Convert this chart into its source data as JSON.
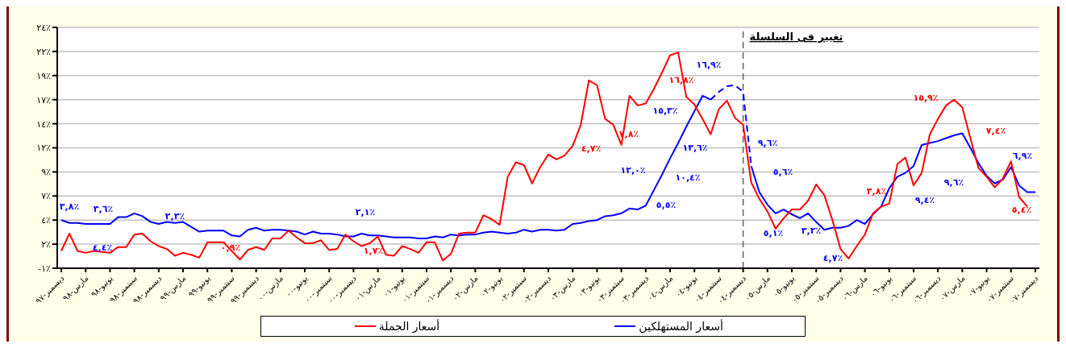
{
  "chart_data": {
    "type": "line",
    "categories": [
      "ديسمبر-٩٧",
      null,
      null,
      "مارس-٩٨",
      null,
      null,
      "يونيو-٩٨",
      null,
      null,
      "سبتمبر-٩٨",
      null,
      null,
      "ديسمبر-٩٨",
      null,
      null,
      "مارس-٩٩",
      null,
      null,
      "يونيو-٩٩",
      null,
      null,
      "سبتمبر-٩٩",
      null,
      null,
      "ديسمبر-٩٩",
      null,
      null,
      "مارس-٠٠",
      null,
      null,
      "يونيو-٠٠",
      null,
      null,
      "سبتمبر-٠٠",
      null,
      null,
      "ديسمبر-٠٠",
      null,
      null,
      "مارس-٠١",
      null,
      null,
      "يونيو-٠١",
      null,
      null,
      "سبتمبر-٠١",
      null,
      null,
      "ديسمبر-٠١",
      null,
      null,
      "مارس-٠٢",
      null,
      null,
      "يونيو-٠٢",
      null,
      null,
      "سبتمبر-٠٢",
      null,
      null,
      "ديسمبر-٠٢",
      null,
      null,
      "مارس-٠٣",
      null,
      null,
      "يونيو-٠٣",
      null,
      null,
      "سبتمبر-٠٣",
      null,
      null,
      "ديسمبر-٠٣",
      null,
      null,
      "مارس-٠٤",
      null,
      null,
      "يونيو-٠٤",
      null,
      null,
      "سبتمبر-٠٤",
      null,
      null,
      "ديسمبر-٠٤",
      null,
      null,
      "مارس-٠٥",
      null,
      null,
      "يونيو-٠٥",
      null,
      null,
      "سبتمبر-٠٥",
      null,
      null,
      "ديسمبر-٠٥",
      null,
      null,
      "مارس-٠٦",
      null,
      null,
      "يونيو-٠٦",
      null,
      null,
      "سبتمبر-٠٦",
      null,
      null,
      "ديسمبر-٠٦",
      null,
      null,
      "مارس-٠٧",
      null,
      null,
      "يونيو-٠٧",
      null,
      null,
      "سبتمبر-٠٧",
      null,
      null,
      "ديسمبر-٠٧"
    ],
    "series": [
      {
        "name": "أسعار المستهلكين",
        "color": "#0000ff",
        "values": [
          4.0,
          3.7,
          3.7,
          3.6,
          3.6,
          3.6,
          3.6,
          4.3,
          4.3,
          4.7,
          4.4,
          3.8,
          3.6,
          3.8,
          3.7,
          3.8,
          3.3,
          2.8,
          2.9,
          2.9,
          2.9,
          2.4,
          2.3,
          3.0,
          3.2,
          2.9,
          3.0,
          3.0,
          2.9,
          2.8,
          2.5,
          2.8,
          2.6,
          2.6,
          2.5,
          2.3,
          2.3,
          2.6,
          2.4,
          2.4,
          2.3,
          2.2,
          2.2,
          2.2,
          2.1,
          2.1,
          2.3,
          2.2,
          2.5,
          2.4,
          2.5,
          2.5,
          2.7,
          2.8,
          2.7,
          2.6,
          2.7,
          3.0,
          2.8,
          3.0,
          3.0,
          2.9,
          3.0,
          3.6,
          3.7,
          3.9,
          4.0,
          4.4,
          4.5,
          4.7,
          5.2,
          5.1,
          5.5,
          7.1,
          8.7,
          10.4,
          12.0,
          13.7,
          15.3,
          16.9,
          16.5,
          null,
          null,
          null,
          null,
          9.6,
          6.9,
          5.6,
          4.7,
          5.1,
          4.6,
          4.2,
          4.7,
          3.8,
          3.0,
          3.2,
          3.2,
          3.4,
          4.0,
          3.6,
          4.6,
          5.4,
          7.3,
          8.5,
          8.9,
          9.6,
          11.8,
          12.0,
          12.2,
          12.5,
          12.8,
          13.0,
          11.5,
          9.9,
          8.6,
          7.8,
          8.2,
          9.5,
          7.6,
          6.9,
          6.9
        ]
      },
      {
        "name": "أسعار الجملة",
        "color": "#ff0000",
        "values": [
          0.8,
          2.6,
          0.8,
          0.6,
          0.8,
          0.7,
          0.6,
          1.2,
          1.2,
          2.5,
          2.6,
          1.8,
          1.3,
          1.0,
          0.3,
          0.6,
          0.4,
          0.1,
          1.7,
          1.7,
          1.7,
          0.8,
          -0.1,
          0.9,
          1.2,
          0.9,
          2.1,
          2.1,
          2.9,
          2.2,
          1.6,
          1.6,
          1.9,
          0.9,
          1.0,
          2.5,
          1.8,
          1.3,
          1.6,
          2.3,
          0.4,
          0.3,
          1.3,
          1.0,
          0.6,
          1.7,
          1.7,
          -0.2,
          0.5,
          2.6,
          2.7,
          2.7,
          4.5,
          4.1,
          3.5,
          8.5,
          10.0,
          9.7,
          7.8,
          9.5,
          10.8,
          10.3,
          10.7,
          11.7,
          13.9,
          18.5,
          18.0,
          14.5,
          13.9,
          11.8,
          16.9,
          15.9,
          16.1,
          17.6,
          19.3,
          21.1,
          21.4,
          16.8,
          16.0,
          14.5,
          12.9,
          15.5,
          16.4,
          14.6,
          13.9,
          7.9,
          6.2,
          4.9,
          3.1,
          4.2,
          5.1,
          5.1,
          6.0,
          7.7,
          6.6,
          4.0,
          1.0,
          0.0,
          1.3,
          2.5,
          4.7,
          5.4,
          5.7,
          9.8,
          10.5,
          7.6,
          8.9,
          12.9,
          14.5,
          15.9,
          16.5,
          15.7,
          12.5,
          9.4,
          8.5,
          7.4,
          8.3,
          10.1,
          6.4,
          5.4,
          null
        ]
      },
      {
        "color": "#0000ff",
        "line_style": "dashed",
        "values": [
          null,
          null,
          null,
          null,
          null,
          null,
          null,
          null,
          null,
          null,
          null,
          null,
          null,
          null,
          null,
          null,
          null,
          null,
          null,
          null,
          null,
          null,
          null,
          null,
          null,
          null,
          null,
          null,
          null,
          null,
          null,
          null,
          null,
          null,
          null,
          null,
          null,
          null,
          null,
          null,
          null,
          null,
          null,
          null,
          null,
          null,
          null,
          null,
          null,
          null,
          null,
          null,
          null,
          null,
          null,
          null,
          null,
          null,
          null,
          null,
          null,
          null,
          null,
          null,
          null,
          null,
          null,
          null,
          null,
          null,
          null,
          null,
          null,
          null,
          null,
          null,
          null,
          null,
          null,
          null,
          16.5,
          17.3,
          17.9,
          18.0,
          17.3,
          9.6,
          null,
          null,
          null,
          null,
          null,
          null,
          null,
          null,
          null,
          null,
          null,
          null,
          null,
          null,
          null,
          null,
          null,
          null,
          null,
          null,
          null,
          null,
          null,
          null,
          null,
          null,
          null,
          null,
          null,
          null,
          null,
          null,
          null,
          null,
          null
        ]
      }
    ],
    "ylim": [
      -1,
      24
    ],
    "yticks": [
      {
        "value": -1,
        "label": "-١٪"
      },
      {
        "value": 1.5,
        "label": "٢٪"
      },
      {
        "value": 4,
        "label": "٤٪"
      },
      {
        "value": 6.5,
        "label": "٧٪"
      },
      {
        "value": 9,
        "label": "٩٪"
      },
      {
        "value": 11.5,
        "label": "١٢٪"
      },
      {
        "value": 14,
        "label": "١٤٪"
      },
      {
        "value": 16.5,
        "label": "١٧٪"
      },
      {
        "value": 19,
        "label": "١٩٪"
      },
      {
        "value": 21.5,
        "label": "٢٢٪"
      },
      {
        "value": 24,
        "label": "٢٤٪"
      }
    ],
    "grid": "y",
    "legend": "bottom",
    "ref_lines": [
      {
        "axis": "x",
        "value": "ديسمبر-٠٤",
        "label": "تغيير فى السلسلة",
        "color": "#606060",
        "line_style": "dashed"
      }
    ],
    "annotations": [
      "٣,٨٪",
      "٣,٦٪",
      "٤,٤٪",
      "٢,٣٪",
      "٠,٩٪",
      "٢,١٪",
      "١,٧٪",
      "٤,٧٪",
      "٧,٨٪",
      "١٢,٠٪",
      "٥,٥٪",
      "١٥,٣٪",
      "١٦,٨٪",
      "١٠,٤٪",
      "١٣,٦٪",
      "١٦,٩٪",
      "٩,٦٪",
      "٥,١٪",
      "٥,٦٪",
      "٣,٢٪",
      "٤,٧٪",
      "٣,٨٪",
      "٩,٤٪",
      "١٥,٩٪",
      "٩,٦٪",
      "٧,٤٪",
      "٦,٩٪",
      "٥,٤٪"
    ]
  }
}
